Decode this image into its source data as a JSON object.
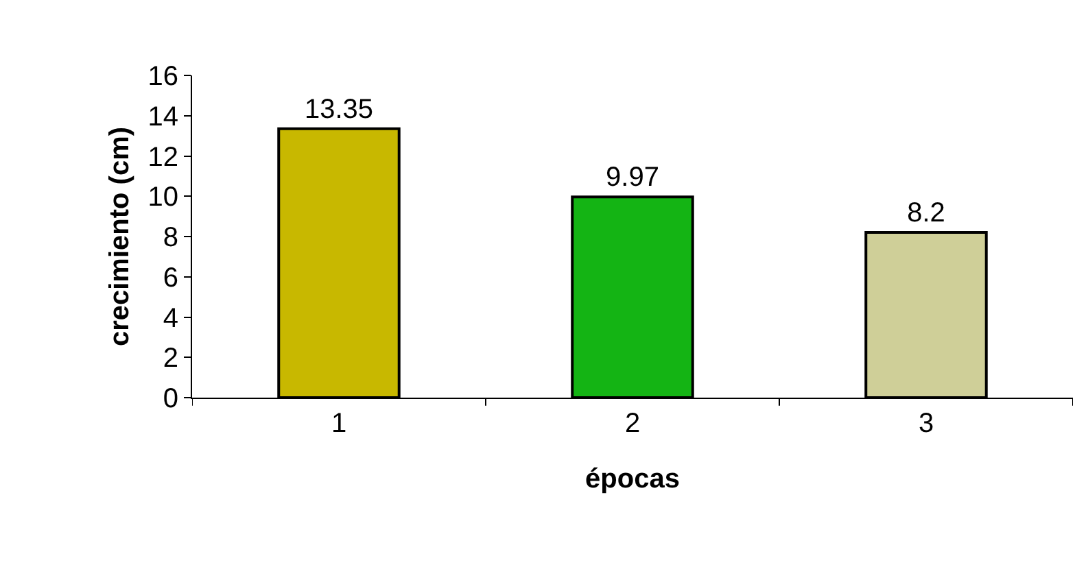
{
  "chart_data": {
    "type": "bar",
    "xlabel": "épocas",
    "ylabel": "crecimiento (cm)",
    "categories": [
      "1",
      "2",
      "3"
    ],
    "values": [
      13.35,
      9.97,
      8.2
    ],
    "colors": [
      "#c8b800",
      "#14b414",
      "#cfcf98"
    ],
    "ylim": [
      0,
      16
    ],
    "yticks": [
      0,
      2,
      4,
      6,
      8,
      10,
      12,
      14,
      16
    ],
    "data_labels": true
  }
}
